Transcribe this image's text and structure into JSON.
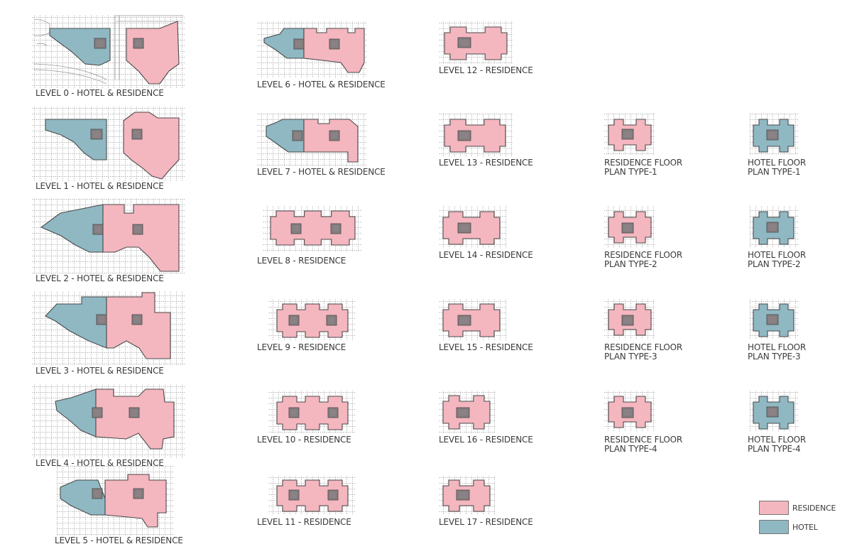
{
  "colors": {
    "residence": "#f4b6bf",
    "hotel": "#8fb8c3",
    "core": "#8a8284",
    "outline": "#4a4a4a",
    "grid": "#8c8c8c",
    "site": "#9a9a9a"
  },
  "plans": [
    {
      "id": "level-0",
      "label": "LEVEL 0 - HOTEL & RESIDENCE",
      "uses": [
        "hotel",
        "residence"
      ]
    },
    {
      "id": "level-1",
      "label": "LEVEL 1 - HOTEL & RESIDENCE",
      "uses": [
        "hotel",
        "residence"
      ]
    },
    {
      "id": "level-2",
      "label": "LEVEL 2 - HOTEL & RESIDENCE",
      "uses": [
        "hotel",
        "residence"
      ]
    },
    {
      "id": "level-3",
      "label": "LEVEL 3 - HOTEL & RESIDENCE",
      "uses": [
        "hotel",
        "residence"
      ]
    },
    {
      "id": "level-4",
      "label": "LEVEL 4 - HOTEL & RESIDENCE",
      "uses": [
        "hotel",
        "residence"
      ]
    },
    {
      "id": "level-5",
      "label": "LEVEL 5 - HOTEL & RESIDENCE",
      "uses": [
        "hotel",
        "residence"
      ]
    },
    {
      "id": "level-6",
      "label": "LEVEL 6 - HOTEL & RESIDENCE",
      "uses": [
        "hotel",
        "residence"
      ]
    },
    {
      "id": "level-7",
      "label": "LEVEL 7 - HOTEL & RESIDENCE",
      "uses": [
        "hotel",
        "residence"
      ]
    },
    {
      "id": "level-8",
      "label": "LEVEL 8 - RESIDENCE",
      "uses": [
        "residence"
      ]
    },
    {
      "id": "level-9",
      "label": "LEVEL 9 - RESIDENCE",
      "uses": [
        "residence"
      ]
    },
    {
      "id": "level-10",
      "label": "LEVEL 10 - RESIDENCE",
      "uses": [
        "residence"
      ]
    },
    {
      "id": "level-11",
      "label": "LEVEL 11 - RESIDENCE",
      "uses": [
        "residence"
      ]
    },
    {
      "id": "level-12",
      "label": "LEVEL 12 - RESIDENCE",
      "uses": [
        "residence"
      ]
    },
    {
      "id": "level-13",
      "label": "LEVEL 13 - RESIDENCE",
      "uses": [
        "residence"
      ]
    },
    {
      "id": "level-14",
      "label": "LEVEL 14 - RESIDENCE",
      "uses": [
        "residence"
      ]
    },
    {
      "id": "level-15",
      "label": "LEVEL 15 - RESIDENCE",
      "uses": [
        "residence"
      ]
    },
    {
      "id": "level-16",
      "label": "LEVEL 16 - RESIDENCE",
      "uses": [
        "residence"
      ]
    },
    {
      "id": "level-17",
      "label": "LEVEL 17 - RESIDENCE",
      "uses": [
        "residence"
      ]
    },
    {
      "id": "residence-type-1",
      "label": "RESIDENCE FLOOR\nPLAN TYPE-1",
      "uses": [
        "residence"
      ]
    },
    {
      "id": "residence-type-2",
      "label": "RESIDENCE FLOOR\nPLAN TYPE-2",
      "uses": [
        "residence"
      ]
    },
    {
      "id": "residence-type-3",
      "label": "RESIDENCE FLOOR\nPLAN TYPE-3",
      "uses": [
        "residence"
      ]
    },
    {
      "id": "residence-type-4",
      "label": "RESIDENCE FLOOR\nPLAN TYPE-4",
      "uses": [
        "residence"
      ]
    },
    {
      "id": "hotel-type-1",
      "label": "HOTEL FLOOR\nPLAN TYPE-1",
      "uses": [
        "hotel"
      ]
    },
    {
      "id": "hotel-type-2",
      "label": "HOTEL FLOOR\nPLAN TYPE-2",
      "uses": [
        "hotel"
      ]
    },
    {
      "id": "hotel-type-3",
      "label": "HOTEL FLOOR\nPLAN TYPE-3",
      "uses": [
        "hotel"
      ]
    },
    {
      "id": "hotel-type-4",
      "label": "HOTEL FLOOR\nPLAN TYPE-4",
      "uses": [
        "hotel"
      ]
    }
  ],
  "legend": {
    "residence": "RESIDENCE",
    "hotel": "HOTEL"
  }
}
